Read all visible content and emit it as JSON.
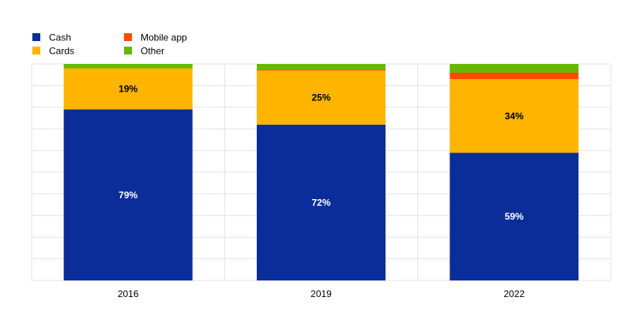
{
  "chart_data": {
    "type": "bar",
    "stacked": true,
    "categories": [
      "2016",
      "2019",
      "2022"
    ],
    "series": [
      {
        "name": "Cash",
        "values": [
          79,
          72,
          59
        ],
        "color": "#0a2d9a",
        "labels": [
          "79%",
          "72%",
          "59%"
        ],
        "label_color": "#ffffff"
      },
      {
        "name": "Cards",
        "values": [
          19,
          25,
          34
        ],
        "color": "#ffb400",
        "labels": [
          "19%",
          "25%",
          "34%"
        ],
        "label_color": "#000000"
      },
      {
        "name": "Mobile app",
        "values": [
          0,
          0.5,
          3
        ],
        "color": "#ff4b00",
        "labels": [
          "",
          "",
          ""
        ],
        "label_color": "#000000"
      },
      {
        "name": "Other",
        "values": [
          2,
          2.5,
          4
        ],
        "color": "#65b800",
        "labels": [
          "",
          "",
          ""
        ],
        "label_color": "#000000"
      }
    ],
    "ylim": [
      0,
      100
    ],
    "grid": true,
    "legend_position": "top-left",
    "xlabel": "",
    "ylabel": ""
  }
}
